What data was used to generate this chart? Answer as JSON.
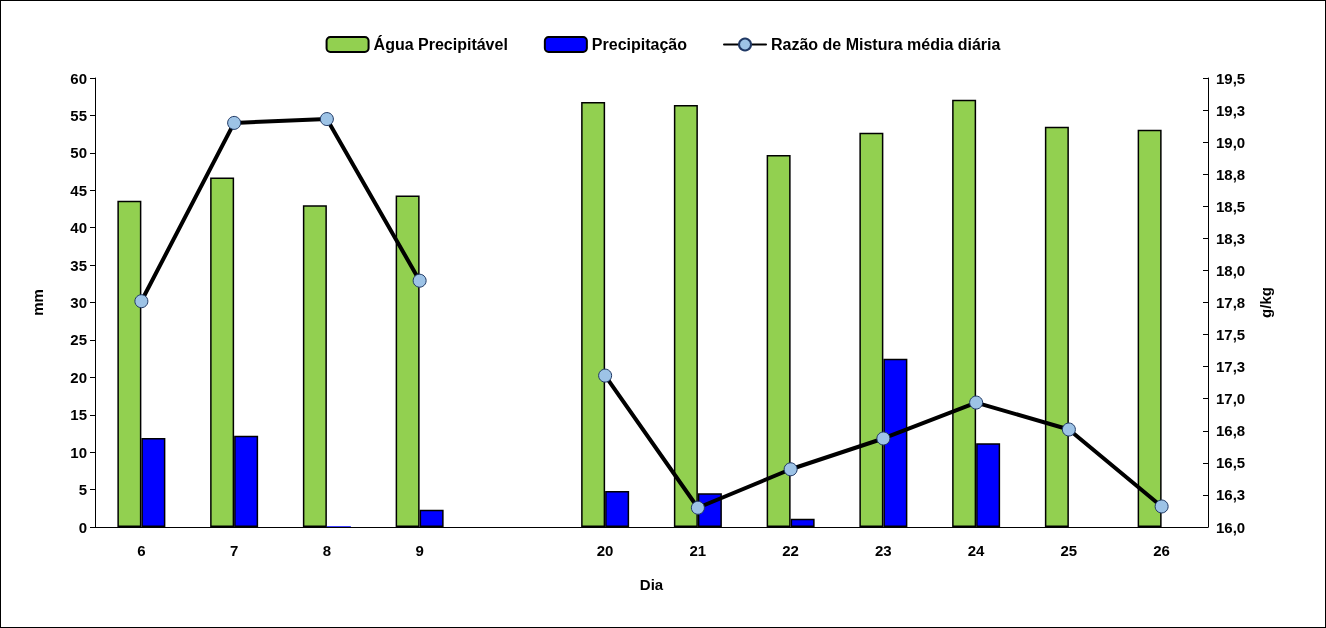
{
  "chart_data": {
    "type": "bar",
    "xlabel": "Dia",
    "ylabel": "mm",
    "y2label": "g/kg",
    "categories": [
      "6",
      "7",
      "8",
      "9",
      null,
      "20",
      "21",
      "22",
      "23",
      "24",
      "25",
      "26"
    ],
    "series": [
      {
        "name": "Água Precipitável",
        "color": "#92d050",
        "values": [
          43.6,
          46.7,
          43.0,
          44.3,
          null,
          56.8,
          56.4,
          49.7,
          52.7,
          57.1,
          53.5,
          53.1
        ]
      },
      {
        "name": "Precipitação",
        "color": "#0000ff",
        "values": [
          11.9,
          12.2,
          0.1,
          2.3,
          null,
          4.8,
          4.5,
          1.1,
          22.5,
          11.2,
          0,
          0
        ]
      },
      {
        "name": "Razão de Mistura média diária",
        "type": "line",
        "axis": "y2",
        "color": "#000000",
        "values": [
          17.76,
          19.15,
          19.18,
          17.92,
          null,
          17.18,
          16.15,
          16.45,
          16.69,
          16.97,
          16.76,
          16.16
        ]
      }
    ],
    "ylim": [
      0,
      60
    ],
    "yticks": [
      0,
      5,
      10,
      15,
      20,
      25,
      30,
      35,
      40,
      45,
      50,
      55,
      60
    ],
    "y2lim": [
      16,
      19.5
    ],
    "y2ticks": [
      {
        "value": 16,
        "label": "16,0"
      },
      {
        "value": 16.25,
        "label": "16,3"
      },
      {
        "value": 16.5,
        "label": "16,5"
      },
      {
        "value": 16.75,
        "label": "16,8"
      },
      {
        "value": 17,
        "label": "17,0"
      },
      {
        "value": 17.25,
        "label": "17,3"
      },
      {
        "value": 17.5,
        "label": "17,5"
      },
      {
        "value": 17.75,
        "label": "17,8"
      },
      {
        "value": 18,
        "label": "18,0"
      },
      {
        "value": 18.25,
        "label": "18,3"
      },
      {
        "value": 18.5,
        "label": "18,5"
      },
      {
        "value": 18.75,
        "label": "18,8"
      },
      {
        "value": 19,
        "label": "19,0"
      },
      {
        "value": 19.25,
        "label": "19,3"
      },
      {
        "value": 19.5,
        "label": "19,5"
      }
    ],
    "grid": false,
    "legend": "top",
    "marker": "circle",
    "line_style": "solid"
  }
}
